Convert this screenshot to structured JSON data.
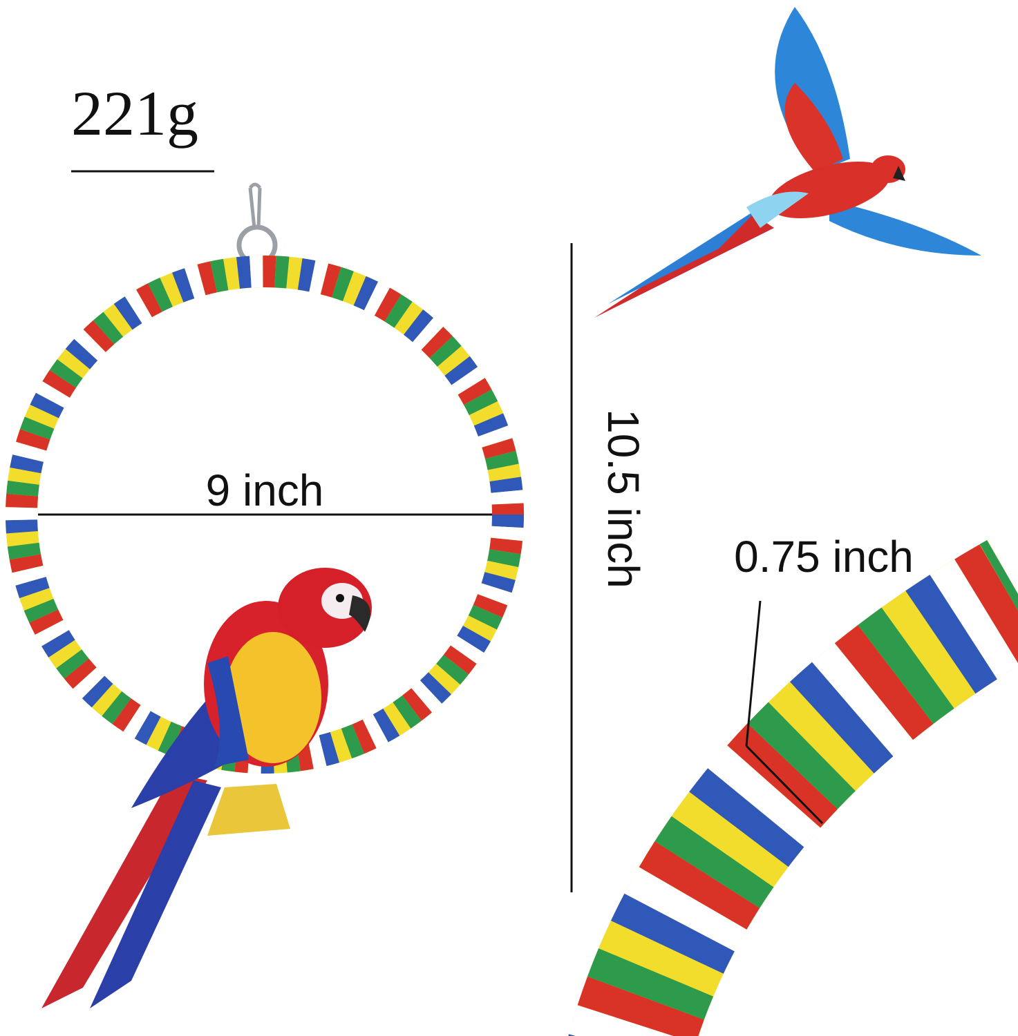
{
  "weight": {
    "label": "221g"
  },
  "ring_diameter": {
    "label": "9 inch"
  },
  "height": {
    "label": "10.5 inch"
  },
  "rope_thickness": {
    "label": "0.75 inch"
  }
}
